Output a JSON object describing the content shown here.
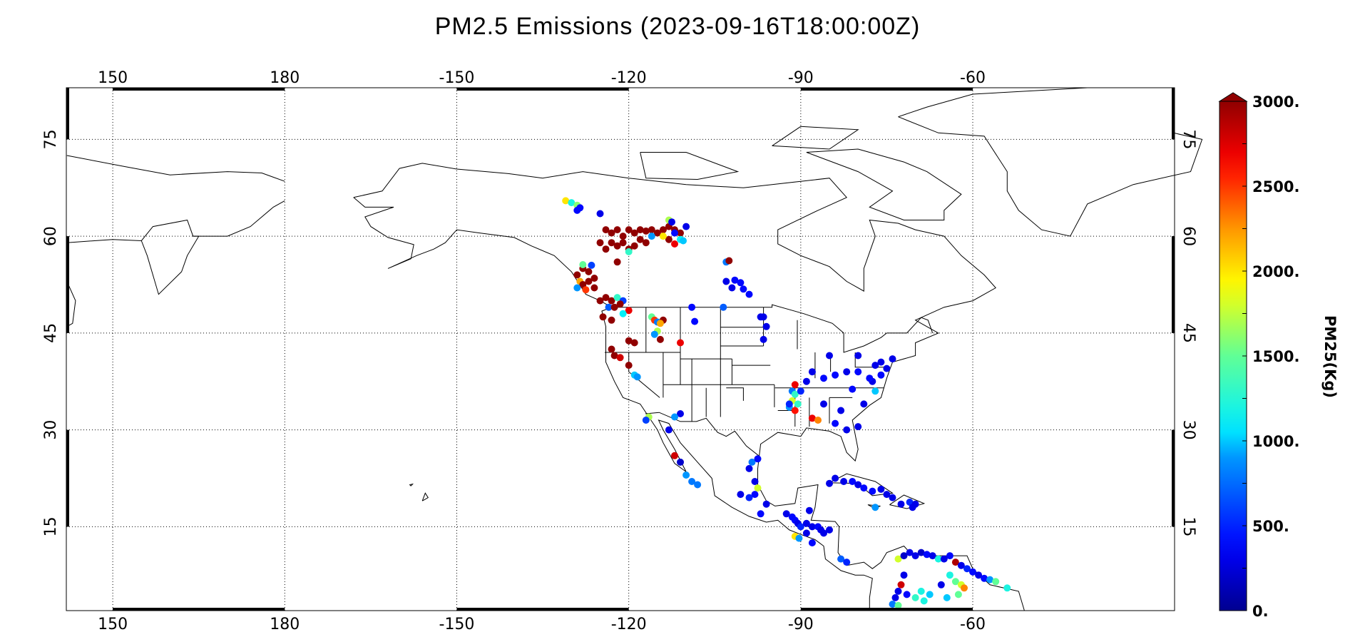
{
  "title": "PM2.5 Emissions (2023-09-16T18:00:00Z)",
  "chart_data": {
    "type": "scatter",
    "projection": "cylindrical lon/lat",
    "title": "PM2.5 Emissions (2023-09-16T18:00:00Z)",
    "lon_range": [
      141.9,
      -24.8
    ],
    "lat_range": [
      2.0,
      83.0
    ],
    "grid": true,
    "lon_ticks": [
      150,
      180,
      -150,
      -120,
      -90,
      -60
    ],
    "lon_tick_labels": [
      "150",
      "180",
      "-150",
      "-120",
      "-90",
      "-60"
    ],
    "lat_ticks": [
      15,
      30,
      45,
      60,
      75
    ],
    "lat_tick_labels": [
      "15",
      "30",
      "45",
      "60",
      "75"
    ],
    "colorbar": {
      "title": "PM25(Kg)",
      "range": [
        0,
        3000
      ],
      "extend": "max",
      "colormap": "jet",
      "tick_labels": [
        "0.",
        "500.",
        "1000.",
        "1500.",
        "2000.",
        "2500.",
        "3000."
      ],
      "ticks": [
        0,
        500,
        1000,
        1500,
        2000,
        2500,
        3000
      ]
    },
    "points_fields": [
      "lon",
      "lat",
      "PM25_kg"
    ],
    "points": [
      [
        -124,
        61,
        3000
      ],
      [
        -123,
        60.5,
        3000
      ],
      [
        -122,
        61,
        3000
      ],
      [
        -121,
        60,
        3000
      ],
      [
        -120,
        61,
        3000
      ],
      [
        -119,
        60.5,
        3000
      ],
      [
        -118,
        61,
        3000
      ],
      [
        -117,
        60.8,
        3000
      ],
      [
        -116,
        61,
        3000
      ],
      [
        -115,
        60.5,
        3000
      ],
      [
        -114,
        61,
        3000
      ],
      [
        -113,
        61.5,
        3000
      ],
      [
        -112,
        61,
        3000
      ],
      [
        -111,
        60.5,
        3000
      ],
      [
        -123,
        59,
        3000
      ],
      [
        -122,
        58.5,
        3000
      ],
      [
        -121,
        59,
        3000
      ],
      [
        -120,
        58,
        3000
      ],
      [
        -119,
        58.5,
        3000
      ],
      [
        -124,
        58,
        3000
      ],
      [
        -125,
        59,
        3000
      ],
      [
        -118,
        59.5,
        3000
      ],
      [
        -113,
        59.5,
        3000
      ],
      [
        -117,
        59,
        3000
      ],
      [
        -116,
        60,
        900
      ],
      [
        -114,
        60,
        2000
      ],
      [
        -112,
        60.5,
        400
      ],
      [
        -110,
        61.5,
        300
      ],
      [
        -111,
        59.5,
        1100
      ],
      [
        -112,
        58.8,
        2700
      ],
      [
        -113,
        62.5,
        1700
      ],
      [
        -112.5,
        62.2,
        300
      ],
      [
        -110.5,
        59.3,
        1000
      ],
      [
        -120,
        57.6,
        1300
      ],
      [
        -122,
        56,
        3000
      ],
      [
        -131,
        65.5,
        2000
      ],
      [
        -130,
        65.2,
        1200
      ],
      [
        -129,
        64.8,
        1600
      ],
      [
        -128.5,
        64.4,
        400
      ],
      [
        -129,
        64,
        400
      ],
      [
        -125,
        63.5,
        300
      ],
      [
        -129,
        54,
        3000
      ],
      [
        -128,
        55,
        3000
      ],
      [
        -127,
        54.5,
        3000
      ],
      [
        -128.5,
        53,
        2200
      ],
      [
        -128,
        52.5,
        3000
      ],
      [
        -127,
        53,
        3000
      ],
      [
        -126,
        53.5,
        3000
      ],
      [
        -129,
        52,
        900
      ],
      [
        -127.5,
        51.7,
        2500
      ],
      [
        -126.5,
        55.5,
        600
      ],
      [
        -128,
        55.6,
        1500
      ],
      [
        -126,
        52,
        3000
      ],
      [
        -125,
        50,
        3000
      ],
      [
        -124,
        50.5,
        3000
      ],
      [
        -123,
        50,
        3000
      ],
      [
        -122,
        50.5,
        1300
      ],
      [
        -121,
        50,
        600
      ],
      [
        -121.5,
        49.5,
        3000
      ],
      [
        -123.5,
        49,
        700
      ],
      [
        -122.5,
        49,
        3000
      ],
      [
        -120,
        48.5,
        2700
      ],
      [
        -121,
        48,
        1100
      ],
      [
        -124.5,
        47.5,
        3000
      ],
      [
        -123,
        47,
        3000
      ],
      [
        -116,
        47.5,
        1500
      ],
      [
        -115.5,
        47,
        2500
      ],
      [
        -115,
        46.7,
        800
      ],
      [
        -114,
        47,
        3000
      ],
      [
        -114.5,
        46.5,
        2200
      ],
      [
        -115,
        45.3,
        1700
      ],
      [
        -115.5,
        44.8,
        900
      ],
      [
        -114.5,
        44,
        3000
      ],
      [
        -109,
        49,
        400
      ],
      [
        -108.5,
        46.8,
        400
      ],
      [
        -111,
        43.5,
        2700
      ],
      [
        -119,
        43.5,
        3000
      ],
      [
        -120,
        43.8,
        3000
      ],
      [
        -123,
        42.5,
        3000
      ],
      [
        -122.5,
        41.5,
        3000
      ],
      [
        -121.5,
        41.2,
        2800
      ],
      [
        -120,
        40,
        3000
      ],
      [
        -119,
        38.5,
        1000
      ],
      [
        -118.5,
        38.2,
        900
      ],
      [
        -103,
        56,
        800
      ],
      [
        -102.5,
        56.2,
        3000
      ],
      [
        -103,
        53,
        300
      ],
      [
        -101.5,
        53.2,
        400
      ],
      [
        -100.5,
        52.8,
        400
      ],
      [
        -102,
        52,
        300
      ],
      [
        -100,
        51.8,
        400
      ],
      [
        -99,
        51,
        400
      ],
      [
        -103.5,
        49,
        700
      ],
      [
        -97,
        47.5,
        300
      ],
      [
        -96.5,
        47.5,
        300
      ],
      [
        -96,
        46,
        300
      ],
      [
        -96.5,
        44,
        300
      ],
      [
        -91.5,
        36,
        800
      ],
      [
        -91,
        35.5,
        1300
      ],
      [
        -91.5,
        34.5,
        1800
      ],
      [
        -92,
        33.5,
        900
      ],
      [
        -91,
        33,
        2600
      ],
      [
        -90.5,
        34,
        1300
      ],
      [
        -90,
        36,
        500
      ],
      [
        -89,
        37.5,
        300
      ],
      [
        -91,
        37,
        2700
      ],
      [
        -92,
        34,
        500
      ],
      [
        -88,
        31.8,
        2700
      ],
      [
        -87,
        31.5,
        2300
      ],
      [
        -84,
        31,
        400
      ],
      [
        -82,
        30,
        300
      ],
      [
        -80,
        30.5,
        300
      ],
      [
        -79,
        34,
        300
      ],
      [
        -81,
        36.3,
        400
      ],
      [
        -77,
        36,
        1000
      ],
      [
        -77.5,
        37.5,
        300
      ],
      [
        -76,
        38.5,
        400
      ],
      [
        -75,
        39.5,
        300
      ],
      [
        -77,
        40,
        300
      ],
      [
        -80,
        39,
        400
      ],
      [
        -82,
        39,
        300
      ],
      [
        -84,
        38.5,
        400
      ],
      [
        -86,
        38,
        400
      ],
      [
        -88,
        39,
        300
      ],
      [
        -85,
        41.5,
        300
      ],
      [
        -80,
        41.5,
        300
      ],
      [
        -76,
        40.5,
        300
      ],
      [
        -74,
        41,
        300
      ],
      [
        -83,
        33,
        300
      ],
      [
        -86,
        34,
        300
      ],
      [
        -78,
        38,
        400
      ],
      [
        -111,
        32.5,
        300
      ],
      [
        -112,
        32,
        900
      ],
      [
        -116.5,
        32,
        1700
      ],
      [
        -117,
        31.5,
        600
      ],
      [
        -113,
        30,
        300
      ],
      [
        -112,
        26,
        2800
      ],
      [
        -111,
        25,
        200
      ],
      [
        -110,
        23,
        900
      ],
      [
        -109,
        22,
        800
      ],
      [
        -108,
        21.5,
        800
      ],
      [
        -98.5,
        25,
        800
      ],
      [
        -97.5,
        25.5,
        400
      ],
      [
        -99,
        24,
        300
      ],
      [
        -98,
        22,
        300
      ],
      [
        -97.5,
        21,
        1800
      ],
      [
        -98,
        20,
        400
      ],
      [
        -99,
        19.5,
        500
      ],
      [
        -96,
        18.5,
        300
      ],
      [
        -97,
        17,
        400
      ],
      [
        -100.5,
        20,
        300
      ],
      [
        -92.5,
        17,
        300
      ],
      [
        -91.5,
        16.5,
        400
      ],
      [
        -91,
        16,
        400
      ],
      [
        -90.5,
        15.5,
        300
      ],
      [
        -90,
        15,
        500
      ],
      [
        -89,
        15.5,
        300
      ],
      [
        -88,
        15,
        300
      ],
      [
        -87,
        15,
        400
      ],
      [
        -86.5,
        14.5,
        300
      ],
      [
        -86,
        14,
        300
      ],
      [
        -85,
        14.5,
        300
      ],
      [
        -88.5,
        17.5,
        300
      ],
      [
        -89,
        14,
        300
      ],
      [
        -91,
        13.5,
        2000
      ],
      [
        -90.3,
        13.2,
        900
      ],
      [
        -88,
        12.5,
        400
      ],
      [
        -83,
        10,
        700
      ],
      [
        -82,
        9.5,
        500
      ],
      [
        -82.5,
        22,
        300
      ],
      [
        -81,
        22,
        400
      ],
      [
        -80,
        21.5,
        300
      ],
      [
        -79,
        21,
        400
      ],
      [
        -77.5,
        20.5,
        400
      ],
      [
        -76,
        20.8,
        300
      ],
      [
        -75,
        20,
        300
      ],
      [
        -74,
        19.5,
        300
      ],
      [
        -72.5,
        18.5,
        300
      ],
      [
        -71,
        18.8,
        500
      ],
      [
        -70.5,
        18,
        300
      ],
      [
        -70,
        18.5,
        300
      ],
      [
        -77,
        18,
        900
      ],
      [
        -84,
        22.5,
        300
      ],
      [
        -85,
        21.7,
        300
      ],
      [
        -73,
        10,
        1800
      ],
      [
        -72,
        10.5,
        200
      ],
      [
        -71,
        11,
        300
      ],
      [
        -70,
        10.5,
        300
      ],
      [
        -69,
        11,
        200
      ],
      [
        -68,
        10.7,
        400
      ],
      [
        -67,
        10.5,
        300
      ],
      [
        -66,
        10,
        1200
      ],
      [
        -65,
        10,
        300
      ],
      [
        -64,
        10.5,
        400
      ],
      [
        -63,
        9.5,
        2900
      ],
      [
        -62,
        9,
        300
      ],
      [
        -61,
        8.5,
        500
      ],
      [
        -60,
        8,
        400
      ],
      [
        -59,
        7.5,
        300
      ],
      [
        -58,
        7,
        400
      ],
      [
        -57,
        6.8,
        900
      ],
      [
        -56,
        6.5,
        1500
      ],
      [
        -54,
        5.5,
        1200
      ],
      [
        -72,
        7.5,
        300
      ],
      [
        -72.5,
        6,
        2800
      ],
      [
        -73,
        5,
        300
      ],
      [
        -73.5,
        4,
        300
      ],
      [
        -71.5,
        4.5,
        400
      ],
      [
        -70,
        4,
        1300
      ],
      [
        -69,
        5,
        1200
      ],
      [
        -67.5,
        4.5,
        1000
      ],
      [
        -68.5,
        3.5,
        1200
      ],
      [
        -65.5,
        6,
        300
      ],
      [
        -64,
        7.5,
        1200
      ],
      [
        -63,
        6.5,
        1500
      ],
      [
        -62,
        6,
        1800
      ],
      [
        -61.5,
        5.5,
        2300
      ],
      [
        -62.5,
        4.5,
        1500
      ],
      [
        -64.5,
        4,
        1000
      ],
      [
        -74,
        3,
        800
      ],
      [
        -73,
        2.8,
        1500
      ]
    ]
  }
}
